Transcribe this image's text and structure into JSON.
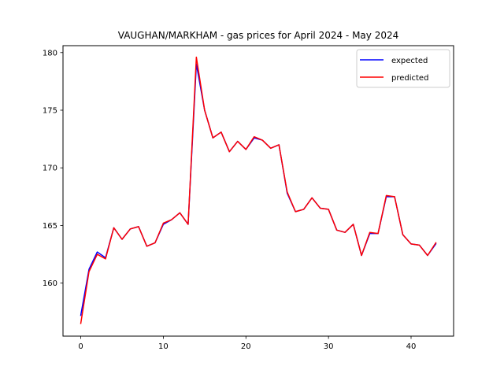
{
  "chart_data": {
    "type": "line",
    "title": "VAUGHAN/MARKHAM - gas prices for April 2024 - May 2024",
    "xlabel": "",
    "ylabel": "",
    "xlim": [
      -2.15,
      45.15
    ],
    "ylim": [
      155.4,
      180.6
    ],
    "xticks": [
      0,
      10,
      20,
      30,
      40
    ],
    "yticks": [
      160,
      165,
      170,
      175,
      180
    ],
    "grid": false,
    "legend_position": "top-right",
    "x": [
      0,
      1,
      2,
      3,
      4,
      5,
      6,
      7,
      8,
      9,
      10,
      11,
      12,
      13,
      14,
      15,
      16,
      17,
      18,
      19,
      20,
      21,
      22,
      23,
      24,
      25,
      26,
      27,
      28,
      29,
      30,
      31,
      32,
      33,
      34,
      35,
      36,
      37,
      38,
      39,
      40,
      41,
      42,
      43
    ],
    "series": [
      {
        "name": "expected",
        "color": "#0000ff",
        "values": [
          157.2,
          161.2,
          162.7,
          162.2,
          164.8,
          163.8,
          164.7,
          164.9,
          163.2,
          163.5,
          165.1,
          165.5,
          166.1,
          165.1,
          179.0,
          175.0,
          172.6,
          173.1,
          171.4,
          172.3,
          171.6,
          172.6,
          172.4,
          171.7,
          172.0,
          167.8,
          166.2,
          166.4,
          167.4,
          166.5,
          166.4,
          164.6,
          164.4,
          165.1,
          162.4,
          164.3,
          164.3,
          167.5,
          167.5,
          164.2,
          163.4,
          163.3,
          162.4,
          163.4
        ]
      },
      {
        "name": "predicted",
        "color": "#ff0000",
        "values": [
          156.5,
          161.0,
          162.5,
          162.1,
          164.8,
          163.8,
          164.7,
          164.9,
          163.2,
          163.5,
          165.2,
          165.5,
          166.1,
          165.1,
          179.6,
          175.0,
          172.6,
          173.1,
          171.4,
          172.3,
          171.6,
          172.7,
          172.4,
          171.7,
          172.0,
          167.9,
          166.2,
          166.4,
          167.4,
          166.5,
          166.4,
          164.6,
          164.4,
          165.1,
          162.4,
          164.4,
          164.3,
          167.6,
          167.5,
          164.2,
          163.4,
          163.3,
          162.4,
          163.5
        ]
      }
    ]
  }
}
